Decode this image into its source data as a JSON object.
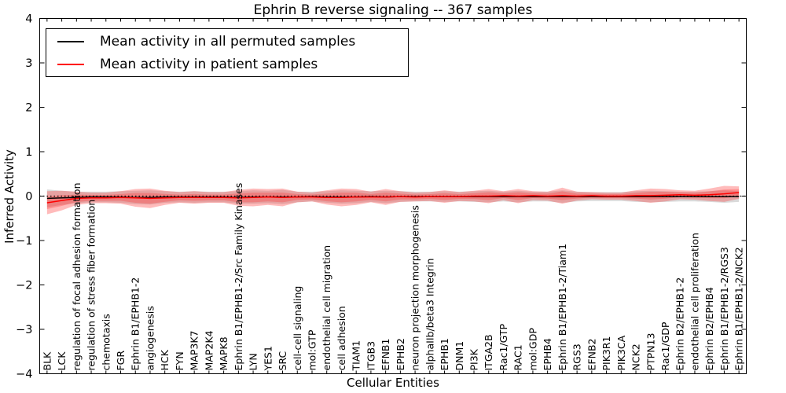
{
  "title": "Ephrin B reverse signaling -- 367 samples",
  "axes": {
    "ylabel": "Inferred Activity",
    "xlabel": "Cellular Entities",
    "yticks": [
      4,
      3,
      2,
      1,
      0,
      -1,
      -2,
      -3,
      -4
    ]
  },
  "legend": {
    "items": [
      {
        "label": "Mean activity in all permuted samples",
        "color": "#000000"
      },
      {
        "label": "Mean activity in patient samples",
        "color": "#ff0000"
      }
    ]
  },
  "colors": {
    "permuted_line": "#000000",
    "patient_line": "#ff0000",
    "permuted_band": "#bbbbbb",
    "patient_band": "#ff3030",
    "axis": "#000000",
    "background": "#ffffff"
  },
  "chart_data": {
    "type": "line",
    "title": "Ephrin B reverse signaling -- 367 samples",
    "xlabel": "Cellular Entities",
    "ylabel": "Inferred Activity",
    "ylim": [
      -4,
      4
    ],
    "grid": false,
    "legend_position": "upper left",
    "zero_reference_line": 0,
    "categories": [
      "BLK",
      "LCK",
      "regulation of focal adhesion formation",
      "regulation of stress fiber formation",
      "chemotaxis",
      "FGR",
      "Ephrin B1/EPHB1-2",
      "angiogenesis",
      "HCK",
      "FYN",
      "MAP3K7",
      "MAP2K4",
      "MAPK8",
      "Ephrin B1/EPHB1-2/Src Family Kinases",
      "LYN",
      "YES1",
      "SRC",
      "cell-cell signaling",
      "mol:GTP",
      "endothelial cell migration",
      "cell adhesion",
      "TIAM1",
      "ITGB3",
      "EFNB1",
      "EPHB2",
      "neuron projection morphogenesis",
      "alphaIIb/beta3 Integrin",
      "EPHB1",
      "DNM1",
      "PI3K",
      "ITGA2B",
      "Rac1/GTP",
      "RAC1",
      "mol:GDP",
      "EPHB4",
      "Ephrin B1/EPHB1-2/Tiam1",
      "RGS3",
      "EFNB2",
      "PIK3R1",
      "PIK3CA",
      "NCK2",
      "PTPN13",
      "Rac1/GDP",
      "Ephrin B2/EPHB1-2",
      "endothelial cell proliferation",
      "Ephrin B2/EPHB4",
      "Ephrin B1/EPHB1-2/RGS3",
      "Ephrin B1/EPHB1-2/NCK2"
    ],
    "series": [
      {
        "name": "Mean activity in all permuted samples",
        "color": "#000000",
        "values": [
          -0.05,
          -0.04,
          -0.03,
          -0.02,
          -0.02,
          -0.02,
          -0.03,
          -0.03,
          -0.02,
          -0.02,
          -0.02,
          -0.02,
          -0.02,
          -0.03,
          -0.02,
          -0.02,
          -0.02,
          -0.02,
          -0.01,
          -0.02,
          -0.02,
          -0.02,
          -0.01,
          -0.02,
          -0.01,
          -0.01,
          -0.01,
          -0.01,
          -0.01,
          -0.01,
          -0.01,
          -0.01,
          -0.01,
          -0.01,
          -0.01,
          -0.01,
          -0.01,
          -0.01,
          -0.01,
          -0.01,
          -0.01,
          -0.01,
          -0.01,
          -0.01,
          -0.01,
          -0.01,
          -0.01,
          -0.01
        ],
        "band": [
          0.2,
          0.16,
          0.13,
          0.12,
          0.12,
          0.13,
          0.15,
          0.16,
          0.13,
          0.12,
          0.13,
          0.12,
          0.12,
          0.14,
          0.15,
          0.14,
          0.16,
          0.12,
          0.11,
          0.13,
          0.15,
          0.14,
          0.12,
          0.14,
          0.12,
          0.11,
          0.11,
          0.12,
          0.11,
          0.12,
          0.13,
          0.11,
          0.13,
          0.11,
          0.11,
          0.14,
          0.11,
          0.1,
          0.1,
          0.1,
          0.12,
          0.13,
          0.12,
          0.11,
          0.11,
          0.12,
          0.14,
          0.12
        ]
      },
      {
        "name": "Mean activity in patient samples",
        "color": "#ff0000",
        "values": [
          -0.15,
          -0.1,
          -0.05,
          -0.04,
          -0.04,
          -0.03,
          -0.04,
          -0.05,
          -0.04,
          -0.03,
          -0.03,
          -0.03,
          -0.03,
          -0.04,
          -0.03,
          -0.02,
          -0.03,
          -0.02,
          -0.02,
          -0.03,
          -0.03,
          -0.02,
          -0.02,
          -0.02,
          -0.01,
          -0.02,
          -0.01,
          -0.01,
          -0.01,
          0.0,
          0.0,
          0.01,
          0.0,
          0.01,
          0.0,
          0.01,
          0.0,
          0.01,
          0.0,
          0.0,
          0.01,
          0.01,
          0.02,
          0.03,
          0.02,
          0.03,
          0.05,
          0.08
        ],
        "band": [
          0.26,
          0.22,
          0.15,
          0.12,
          0.12,
          0.14,
          0.2,
          0.22,
          0.16,
          0.12,
          0.14,
          0.12,
          0.12,
          0.18,
          0.2,
          0.18,
          0.2,
          0.12,
          0.1,
          0.16,
          0.2,
          0.18,
          0.12,
          0.18,
          0.12,
          0.1,
          0.1,
          0.14,
          0.1,
          0.12,
          0.16,
          0.1,
          0.16,
          0.1,
          0.1,
          0.18,
          0.1,
          0.08,
          0.08,
          0.08,
          0.12,
          0.16,
          0.14,
          0.1,
          0.1,
          0.14,
          0.18,
          0.14
        ]
      }
    ]
  }
}
